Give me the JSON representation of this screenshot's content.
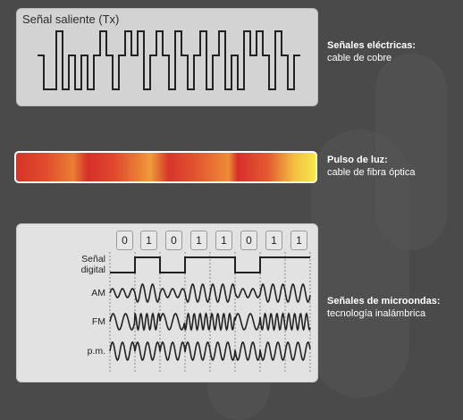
{
  "electric": {
    "panel_title": "Señal saliente (Tx)",
    "caption_title": "Señales eléctricas:",
    "caption_sub": "cable de cobre",
    "waveform_levels": [
      2,
      1,
      1,
      3,
      1,
      2,
      1,
      2,
      1,
      2,
      3,
      2,
      1,
      2,
      3,
      2,
      3,
      1,
      2,
      3,
      2,
      1,
      3,
      2,
      1,
      2,
      3,
      1,
      2,
      3,
      1,
      2,
      1,
      3,
      2,
      3,
      2,
      1,
      3,
      2,
      1,
      2
    ]
  },
  "fiber": {
    "caption_title": "Pulso de luz:",
    "caption_sub": "cable de fibra óptica"
  },
  "wireless": {
    "caption_title": "Señales de microondas:",
    "caption_sub": "tecnología inalámbrica",
    "bits": [
      "0",
      "1",
      "0",
      "1",
      "1",
      "0",
      "1",
      "1"
    ],
    "labels": {
      "digital_line1": "Señal",
      "digital_line2": "digital",
      "am": "AM",
      "fm": "FM",
      "pm": "p.m."
    }
  },
  "colors": {
    "background": "#4a4a4a",
    "panel": "#d3d3d3",
    "waveform": "#222222"
  }
}
